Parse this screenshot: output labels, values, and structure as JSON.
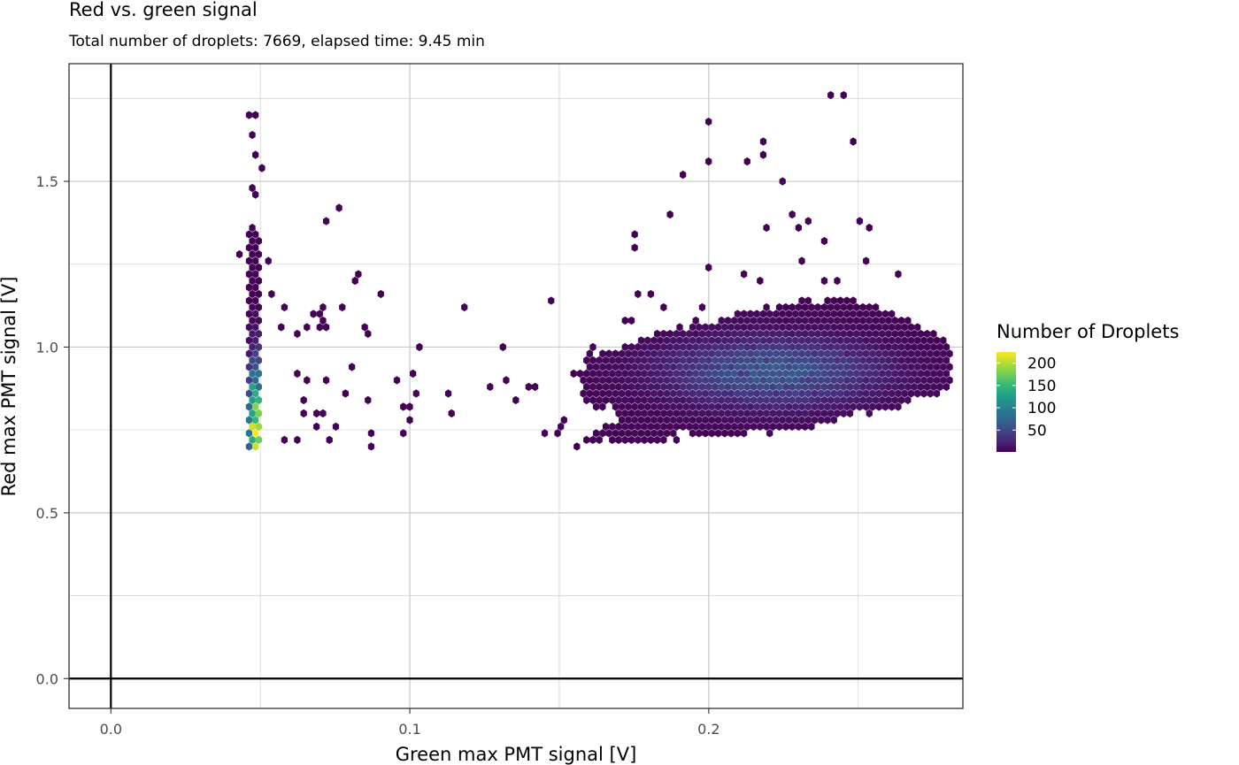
{
  "chart_data": {
    "type": "heatmap",
    "geom": "hexbin",
    "title": "Red vs. green signal",
    "subtitle": "Total number of droplets: 7669, elapsed time: 9.45 min",
    "xlabel": "Green max PMT signal [V]",
    "ylabel": "Red max PMT signal [V]",
    "xlim": [
      -0.014,
      0.285
    ],
    "ylim": [
      -0.09,
      1.855
    ],
    "x_ticks": [
      0.0,
      0.1,
      0.2
    ],
    "x_tick_labels": [
      "0.0",
      "0.1",
      "0.2"
    ],
    "y_ticks": [
      0.0,
      0.5,
      1.0,
      1.5
    ],
    "y_tick_labels": [
      "0.0",
      "0.5",
      "1.0",
      "1.5"
    ],
    "x_minor_gridlines": [
      0.05,
      0.15,
      0.25
    ],
    "y_minor_gridlines": [
      0.25,
      0.75,
      1.25,
      1.75
    ],
    "reference_lines": {
      "x": 0.0,
      "y": 0.0
    },
    "grid": true,
    "legend": {
      "title": "Number of Droplets",
      "placement": "right",
      "min": 1,
      "max": 225,
      "breaks": [
        50,
        100,
        150,
        200
      ],
      "break_labels": [
        "50",
        "100",
        "150",
        "200"
      ],
      "palette": [
        "#440154",
        "#482878",
        "#3e4a89",
        "#31688e",
        "#26828e",
        "#1f9e89",
        "#35b779",
        "#6ece58",
        "#b5de2b",
        "#fde725"
      ]
    },
    "clusters": [
      {
        "name": "",
        "type": "column",
        "x": 0.048,
        "y_min": 0.69,
        "y_max": 1.36,
        "peak": 225,
        "peak_y": 0.72
      },
      {
        "name": "",
        "type": "blob",
        "cx": 0.221,
        "cy": 0.92,
        "rx": 0.032,
        "ry": 0.16,
        "peak": 55,
        "x_min": 0.158,
        "x_max": 0.28
      }
    ],
    "outlier_points": [
      [
        0.049,
        1.7
      ],
      [
        0.047,
        1.69
      ],
      [
        0.047,
        1.63
      ],
      [
        0.049,
        1.58
      ],
      [
        0.05,
        1.54
      ],
      [
        0.047,
        1.48
      ],
      [
        0.049,
        1.46
      ],
      [
        0.077,
        1.41
      ],
      [
        0.073,
        1.38
      ],
      [
        0.044,
        1.27
      ],
      [
        0.052,
        1.25
      ],
      [
        0.054,
        1.17
      ],
      [
        0.056,
        1.06
      ],
      [
        0.058,
        1.11
      ],
      [
        0.063,
        1.04
      ],
      [
        0.066,
        1.05
      ],
      [
        0.067,
        1.1
      ],
      [
        0.069,
        1.05
      ],
      [
        0.071,
        1.11
      ],
      [
        0.072,
        1.07
      ],
      [
        0.073,
        1.05
      ],
      [
        0.07,
        1.1
      ],
      [
        0.078,
        1.11
      ],
      [
        0.082,
        1.2
      ],
      [
        0.083,
        1.22
      ],
      [
        0.09,
        1.17
      ],
      [
        0.085,
        1.03
      ],
      [
        0.086,
        1.05
      ],
      [
        0.064,
        0.84
      ],
      [
        0.065,
        0.8
      ],
      [
        0.063,
        0.92
      ],
      [
        0.066,
        0.9
      ],
      [
        0.068,
        0.8
      ],
      [
        0.07,
        0.8
      ],
      [
        0.072,
        0.79
      ],
      [
        0.073,
        0.89
      ],
      [
        0.076,
        0.75
      ],
      [
        0.078,
        0.86
      ],
      [
        0.08,
        0.94
      ],
      [
        0.069,
        0.75
      ],
      [
        0.058,
        0.72
      ],
      [
        0.062,
        0.72
      ],
      [
        0.073,
        0.72
      ],
      [
        0.087,
        0.83
      ],
      [
        0.088,
        0.73
      ],
      [
        0.088,
        0.7
      ],
      [
        0.096,
        0.89
      ],
      [
        0.097,
        0.82
      ],
      [
        0.098,
        0.73
      ],
      [
        0.1,
        0.92
      ],
      [
        0.1,
        0.82
      ],
      [
        0.101,
        0.78
      ],
      [
        0.103,
        0.85
      ],
      [
        0.104,
        1.0
      ],
      [
        0.112,
        0.86
      ],
      [
        0.113,
        0.79
      ],
      [
        0.118,
        1.11
      ],
      [
        0.127,
        0.88
      ],
      [
        0.131,
        1.0
      ],
      [
        0.132,
        0.89
      ],
      [
        0.136,
        0.84
      ],
      [
        0.139,
        0.88
      ],
      [
        0.141,
        0.87
      ],
      [
        0.146,
        0.73
      ],
      [
        0.148,
        1.14
      ],
      [
        0.149,
        0.73
      ],
      [
        0.15,
        0.76
      ],
      [
        0.151,
        0.77
      ],
      [
        0.154,
        0.91
      ],
      [
        0.158,
        0.91
      ],
      [
        0.156,
        0.7
      ],
      [
        0.16,
        0.97
      ],
      [
        0.162,
        1.0
      ],
      [
        0.172,
        1.08
      ],
      [
        0.175,
        1.08
      ],
      [
        0.176,
        1.34
      ],
      [
        0.175,
        1.29
      ],
      [
        0.177,
        1.16
      ],
      [
        0.18,
        1.17
      ],
      [
        0.184,
        1.11
      ],
      [
        0.186,
        1.4
      ],
      [
        0.192,
        1.52
      ],
      [
        0.2,
        1.56
      ],
      [
        0.201,
        1.67
      ],
      [
        0.213,
        1.56
      ],
      [
        0.219,
        1.61
      ],
      [
        0.219,
        1.58
      ],
      [
        0.225,
        1.49
      ],
      [
        0.228,
        1.4
      ],
      [
        0.23,
        1.36
      ],
      [
        0.22,
        1.36
      ],
      [
        0.234,
        1.37
      ],
      [
        0.238,
        1.32
      ],
      [
        0.24,
        1.75
      ],
      [
        0.245,
        1.76
      ],
      [
        0.248,
        1.61
      ],
      [
        0.25,
        1.38
      ],
      [
        0.254,
        1.36
      ],
      [
        0.252,
        1.26
      ],
      [
        0.264,
        1.21
      ],
      [
        0.27,
        1.0
      ],
      [
        0.276,
        0.98
      ],
      [
        0.279,
        0.97
      ],
      [
        0.277,
        0.95
      ],
      [
        0.2,
        1.23
      ],
      [
        0.212,
        1.22
      ],
      [
        0.218,
        1.2
      ],
      [
        0.232,
        1.25
      ],
      [
        0.238,
        1.2
      ],
      [
        0.244,
        1.2
      ],
      [
        0.198,
        1.12
      ],
      [
        0.196,
        1.07
      ],
      [
        0.19,
        1.05
      ],
      [
        0.186,
        1.03
      ],
      [
        0.183,
        1.03
      ],
      [
        0.261,
        1.03
      ],
      [
        0.259,
        1.07
      ],
      [
        0.256,
        1.11
      ],
      [
        0.258,
        1.0
      ],
      [
        0.262,
        0.93
      ],
      [
        0.266,
        0.9
      ],
      [
        0.268,
        0.91
      ],
      [
        0.264,
        0.94
      ],
      [
        0.254,
        1.1
      ]
    ]
  }
}
